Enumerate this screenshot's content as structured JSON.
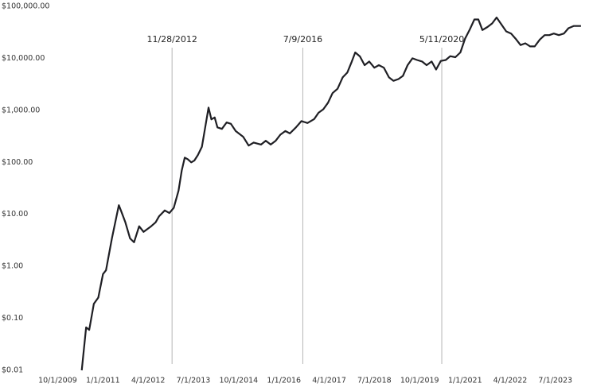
{
  "chart_data": {
    "type": "line",
    "log_scale": true,
    "grid": false,
    "color": "#1f1f24",
    "x": [
      "6/1/2010",
      "7/15/2010",
      "8/15/2010",
      "10/1/2010",
      "11/15/2010",
      "1/1/2011",
      "2/1/2011",
      "4/1/2011",
      "6/10/2011",
      "7/1/2011",
      "8/15/2011",
      "10/1/2011",
      "11/10/2011",
      "1/1/2012",
      "2/15/2012",
      "5/1/2012",
      "6/15/2012",
      "7/20/2012",
      "9/15/2012",
      "11/1/2012",
      "12/15/2012",
      "2/1/2013",
      "3/5/2013",
      "4/5/2013",
      "5/5/2013",
      "6/10/2013",
      "7/10/2013",
      "8/15/2013",
      "9/25/2013",
      "12/1/2013",
      "12/30/2013",
      "2/1/2014",
      "3/1/2014",
      "4/15/2014",
      "6/1/2014",
      "7/15/2014",
      "9/1/2014",
      "11/15/2014",
      "1/10/2015",
      "3/1/2015",
      "5/15/2015",
      "7/1/2015",
      "8/20/2015",
      "10/10/2015",
      "11/25/2015",
      "1/15/2016",
      "3/1/2016",
      "5/1/2016",
      "6/25/2016",
      "8/25/2016",
      "11/1/2016",
      "12/15/2016",
      "2/1/2017",
      "3/20/2017",
      "5/5/2017",
      "6/25/2017",
      "8/15/2017",
      "10/1/2017",
      "11/15/2017",
      "12/20/2017",
      "2/5/2018",
      "3/25/2018",
      "5/10/2018",
      "7/1/2018",
      "8/15/2018",
      "10/5/2018",
      "11/25/2018",
      "1/10/2019",
      "3/1/2019",
      "4/15/2019",
      "6/1/2019",
      "7/20/2019",
      "9/5/2019",
      "10/25/2019",
      "12/10/2019",
      "1/30/2020",
      "3/15/2020",
      "5/1/2020",
      "6/20/2020",
      "8/5/2020",
      "9/25/2020",
      "11/15/2020",
      "1/1/2021",
      "2/15/2021",
      "4/5/2021",
      "5/15/2021",
      "6/25/2021",
      "8/15/2021",
      "10/1/2021",
      "11/15/2021",
      "1/5/2022",
      "2/20/2022",
      "4/10/2022",
      "5/25/2022",
      "7/15/2022",
      "9/1/2022",
      "10/20/2022",
      "12/5/2022",
      "1/25/2023",
      "3/15/2023",
      "5/1/2023",
      "6/15/2023",
      "8/5/2023",
      "9/25/2023",
      "11/10/2023",
      "1/1/2024",
      "3/15/2024"
    ],
    "values": [
      0.01,
      0.067,
      0.06,
      0.19,
      0.25,
      0.71,
      0.84,
      3.45,
      15,
      11.9,
      7,
      3.45,
      2.9,
      5.9,
      4.6,
      5.9,
      7,
      9.2,
      11.9,
      10.6,
      13.3,
      28.6,
      69,
      123,
      115,
      100,
      108,
      138,
      200,
      1130,
      670,
      730,
      470,
      440,
      585,
      550,
      400,
      310,
      210,
      240,
      220,
      260,
      220,
      260,
      340,
      400,
      360,
      470,
      620,
      570,
      680,
      900,
      1050,
      1400,
      2140,
      2600,
      4300,
      5350,
      8700,
      13000,
      10900,
      7400,
      8700,
      6600,
      7400,
      6600,
      4300,
      3700,
      4000,
      4600,
      7400,
      10000,
      9300,
      8700,
      7400,
      8700,
      6100,
      8900,
      9300,
      11000,
      10500,
      13000,
      24000,
      35000,
      56000,
      56000,
      35000,
      40000,
      47000,
      61000,
      44000,
      33000,
      30000,
      24000,
      18000,
      19500,
      17000,
      17000,
      23000,
      28000,
      28000,
      30000,
      28000,
      30000,
      38000,
      42000,
      42000
    ],
    "xlim": [
      "7/1/2009",
      "4/1/2024"
    ],
    "xticks": [
      "10/1/2009",
      "1/1/2011",
      "4/1/2012",
      "7/1/2013",
      "10/1/2014",
      "1/1/2016",
      "4/1/2017",
      "7/1/2018",
      "10/1/2019",
      "1/1/2021",
      "4/1/2022",
      "7/1/2023"
    ],
    "ylim": [
      0.01,
      100000
    ],
    "yticks": [
      {
        "value": 0.01,
        "label": "$0.01"
      },
      {
        "value": 0.1,
        "label": "$0.10"
      },
      {
        "value": 1,
        "label": "$1.00"
      },
      {
        "value": 10,
        "label": "$10.00"
      },
      {
        "value": 100,
        "label": "$100.00"
      },
      {
        "value": 1000,
        "label": "$1,000.00"
      },
      {
        "value": 10000,
        "label": "$10,000.00"
      },
      {
        "value": 100000,
        "label": "$100,000.00"
      }
    ],
    "annotations": [
      "11/28/2012",
      "7/9/2016",
      "5/11/2020"
    ],
    "annotation_color": "#b5b5b5"
  }
}
